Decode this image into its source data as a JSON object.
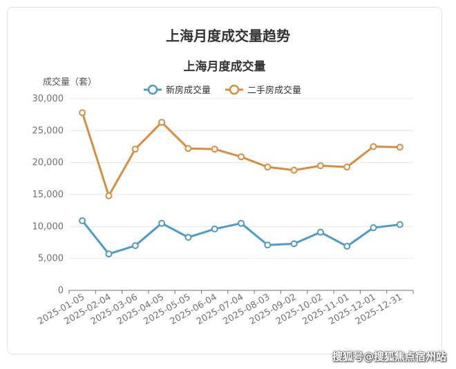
{
  "page": {
    "title": "上海月度成交量趋势",
    "watermark": "搜狐号@搜狐焦点宿州站"
  },
  "chart_data": {
    "type": "line",
    "title": "上海月度成交量",
    "ylabel": "成交量（套）",
    "xlabel": "",
    "ylim": [
      0,
      30000
    ],
    "yticks": [
      0,
      5000,
      10000,
      15000,
      20000,
      25000,
      30000
    ],
    "ytick_labels": [
      "0",
      "5,000",
      "10,000",
      "15,000",
      "20,000",
      "25,000",
      "30,000"
    ],
    "grid": true,
    "legend_position": "top-center",
    "categories": [
      "2025-01-05",
      "2025-02-04",
      "2025-03-06",
      "2025-04-05",
      "2025-05-05",
      "2025-06-04",
      "2025-07-04",
      "2025-08-03",
      "2025-09-02",
      "2025-10-02",
      "2025-11-01",
      "2025-12-01",
      "2025-12-31"
    ],
    "series": [
      {
        "name": "新房成交量",
        "color": "#4a9bc9",
        "values": [
          10900,
          5700,
          7000,
          10500,
          8300,
          9600,
          10500,
          7100,
          7300,
          9100,
          6900,
          9800,
          10300
        ]
      },
      {
        "name": "二手房成交量",
        "color": "#d98c3c",
        "values": [
          27800,
          14800,
          22100,
          26300,
          22200,
          22100,
          20900,
          19300,
          18800,
          19500,
          19300,
          22500,
          22400
        ]
      }
    ]
  }
}
